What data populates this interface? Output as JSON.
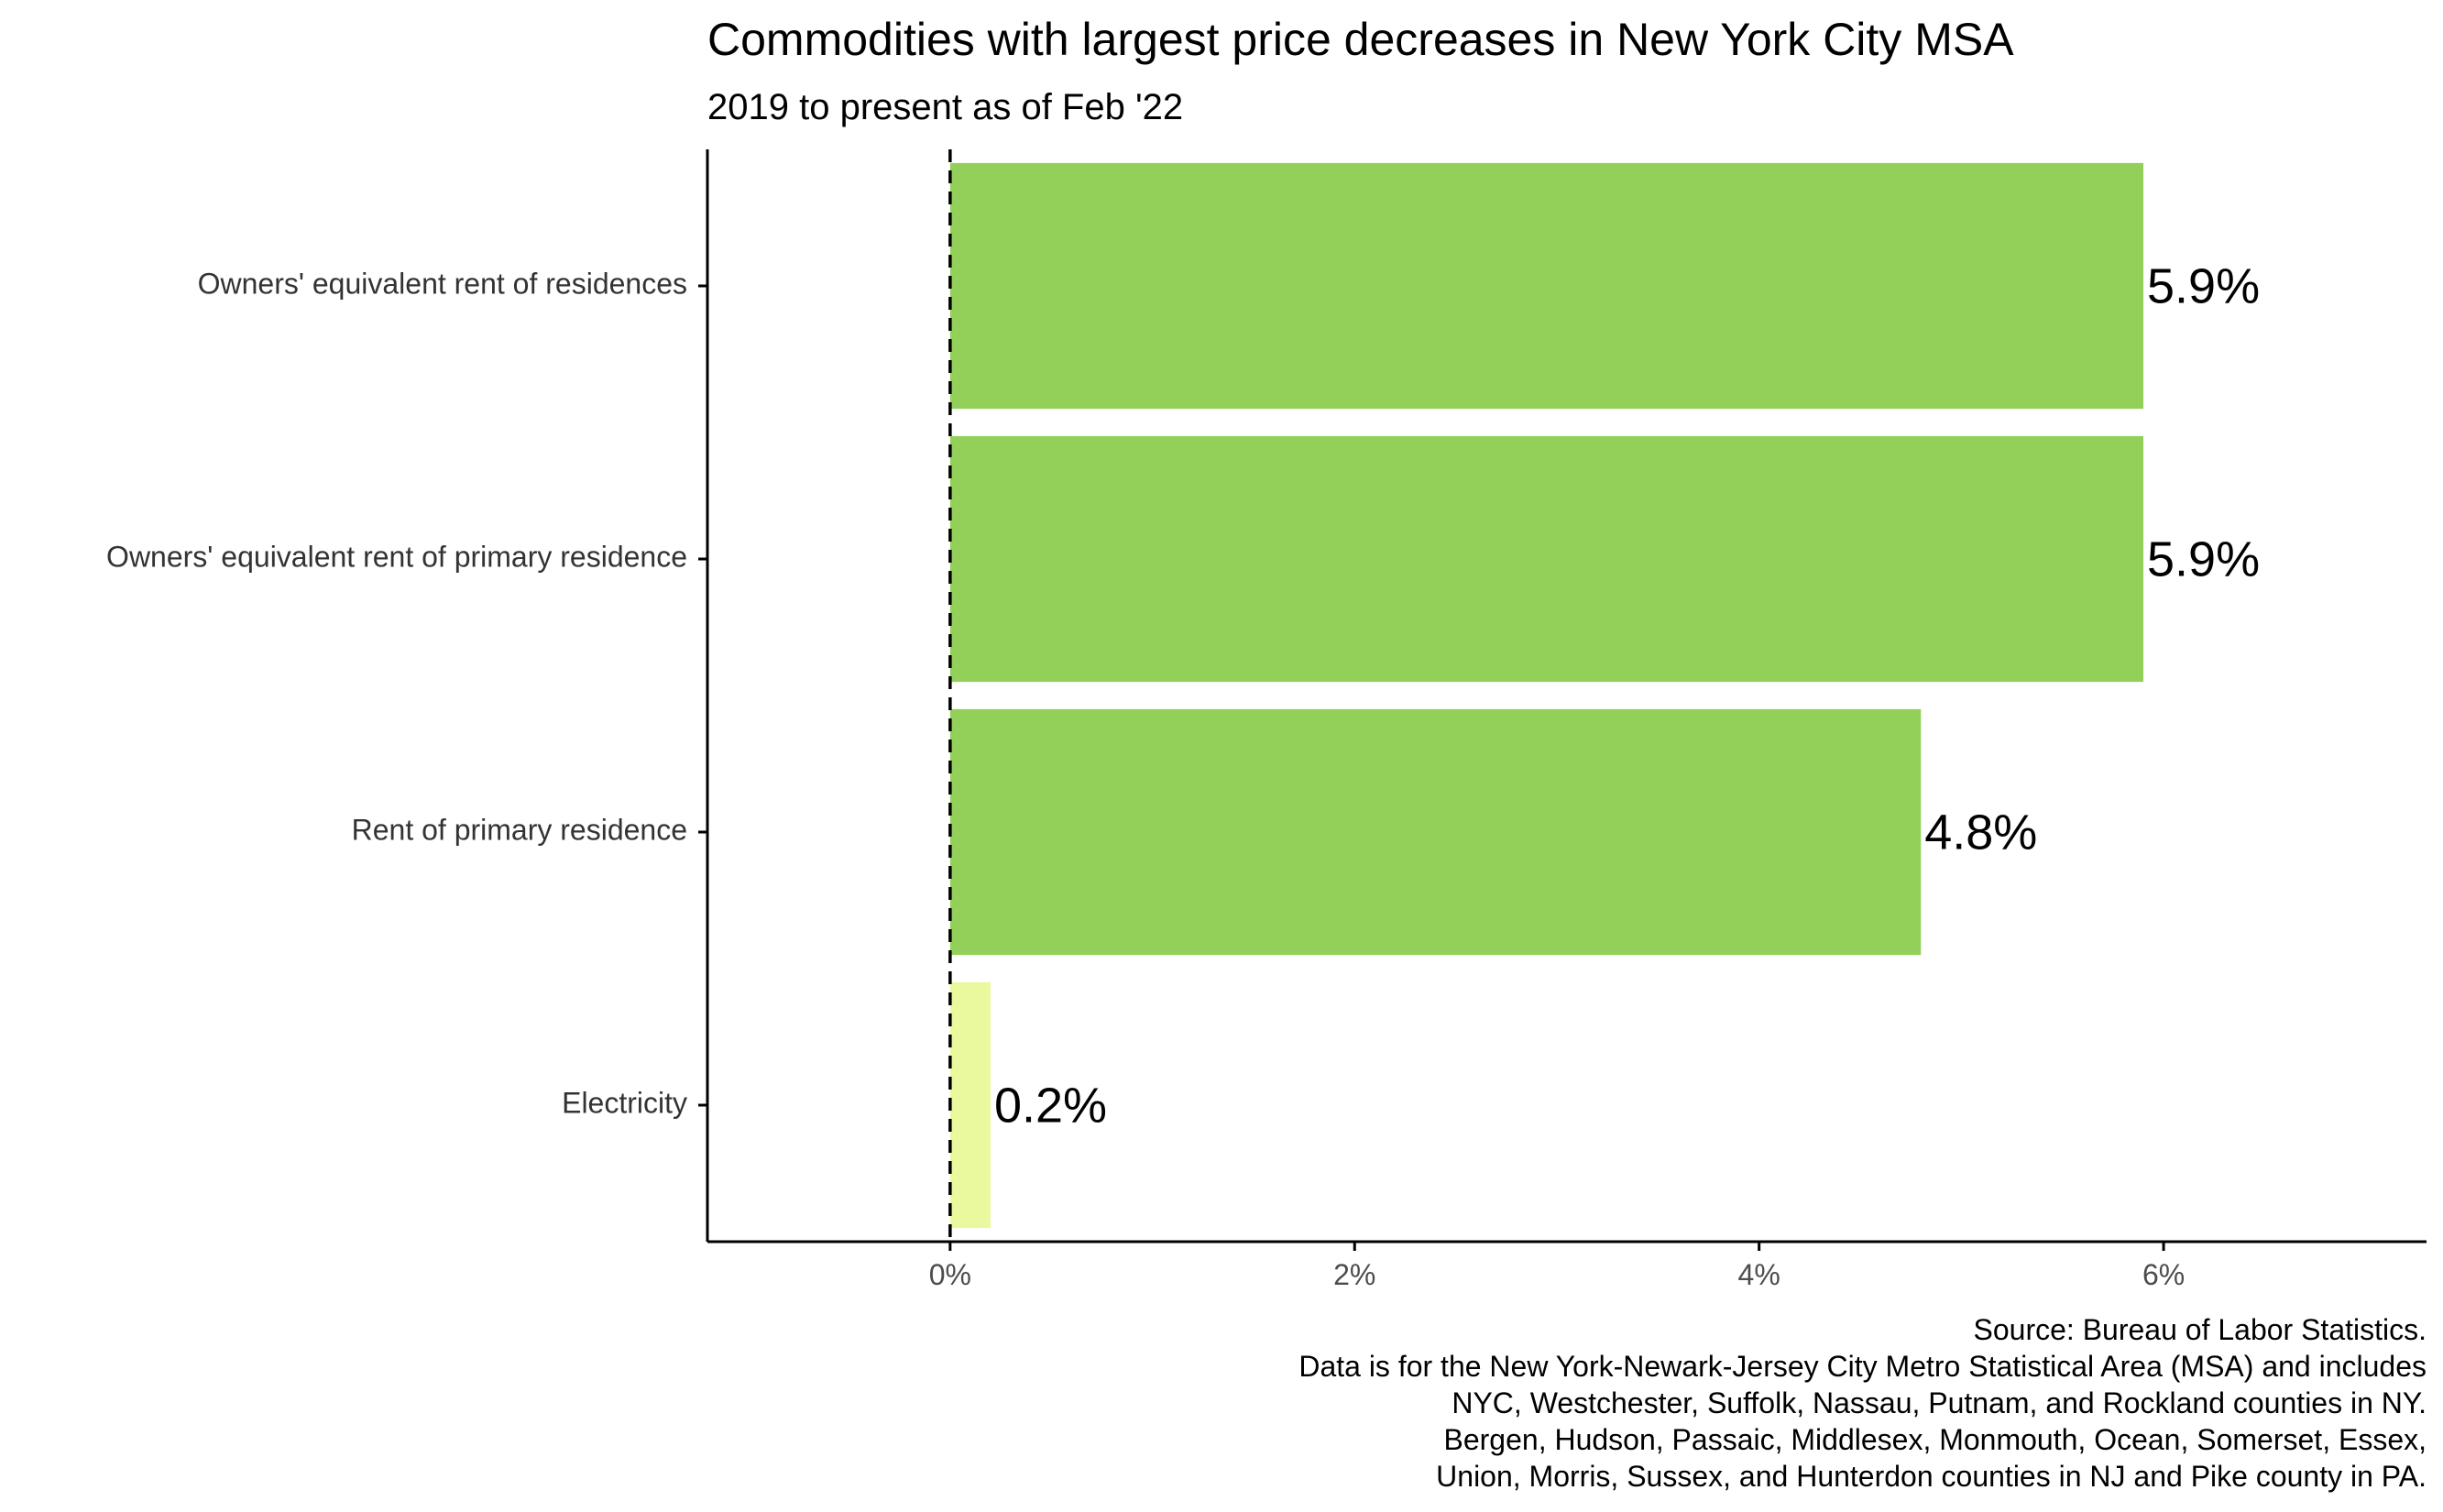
{
  "chart_data": {
    "type": "bar",
    "orientation": "horizontal",
    "title": "Commodities with largest price decreases in New York City MSA",
    "subtitle": "2019 to present as of Feb '22",
    "categories": [
      "Owners' equivalent rent of residences",
      "Owners' equivalent rent of primary residence",
      "Rent of primary residence",
      "Electricity"
    ],
    "values": [
      5.9,
      5.9,
      4.8,
      0.2
    ],
    "value_labels": [
      "5.9%",
      "5.9%",
      "4.8%",
      "0.2%"
    ],
    "bar_colors": [
      "#92d05a",
      "#92d05a",
      "#92d05a",
      "#eaf89e"
    ],
    "xlim": [
      -1.2,
      7.3
    ],
    "x_ticks": [
      0,
      2,
      4,
      6
    ],
    "x_tick_labels": [
      "0%",
      "2%",
      "4%",
      "6%"
    ],
    "reference_line": 0,
    "xlabel": "",
    "ylabel": "",
    "grid": false,
    "caption": [
      "Source: Bureau of Labor Statistics.",
      "Data is for the New York-Newark-Jersey City Metro Statistical Area (MSA) and includes",
      "NYC, Westchester, Suffolk, Nassau, Putnam, and Rockland counties in NY.",
      "Bergen, Hudson, Passaic, Middlesex, Monmouth, Ocean, Somerset, Essex,",
      "Union, Morris, Sussex, and Hunterdon counties in NJ and Pike county in PA."
    ]
  }
}
